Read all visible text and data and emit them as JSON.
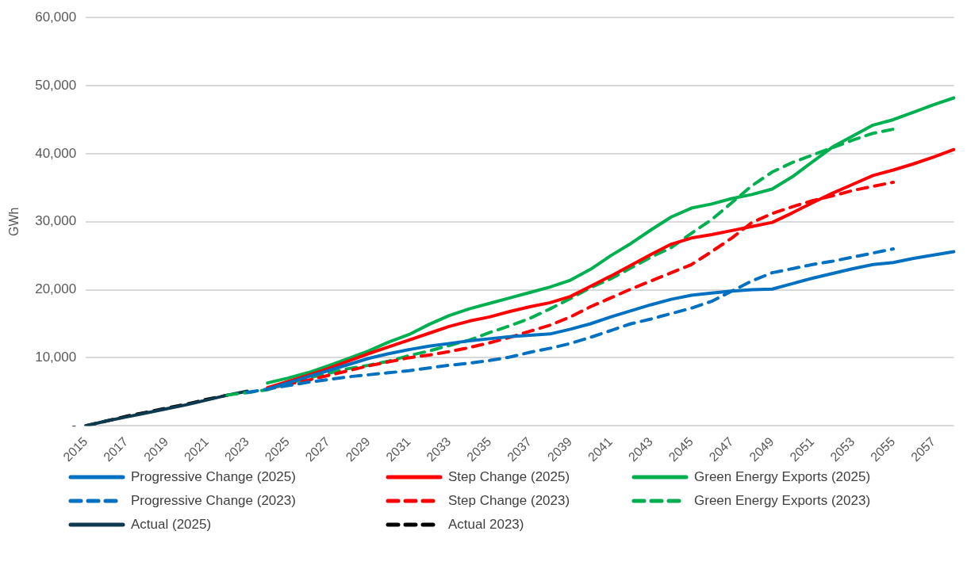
{
  "chart_data": {
    "type": "line",
    "ylabel": "GWh",
    "categories": [
      "2015",
      null,
      "2017",
      null,
      "2019",
      null,
      "2021",
      null,
      "2023",
      null,
      "2025",
      null,
      "2027",
      null,
      "2029",
      null,
      "2031",
      null,
      "2033",
      null,
      "2035",
      null,
      "2037",
      null,
      "2039",
      null,
      "2041",
      null,
      "2043",
      null,
      "2045",
      null,
      "2047",
      null,
      "2049",
      null,
      "2051",
      null,
      "2053",
      null,
      "2055",
      null,
      "2057",
      null
    ],
    "ylim": [
      0,
      60000
    ],
    "yticks": [
      {
        "value": 0,
        "label": "-"
      },
      {
        "value": 10000,
        "label": "10,000"
      },
      {
        "value": 20000,
        "label": "20,000"
      },
      {
        "value": 30000,
        "label": "30,000"
      },
      {
        "value": 40000,
        "label": "40,000"
      },
      {
        "value": 50000,
        "label": "50,000"
      },
      {
        "value": 60000,
        "label": "60,000"
      }
    ],
    "grid": "y",
    "legend": "bottom",
    "marker": "none",
    "series": [
      {
        "name": "Progressive Change (2025)",
        "color": "#0070c0",
        "line_style": "solid",
        "values": [
          null,
          null,
          null,
          null,
          null,
          null,
          null,
          null,
          null,
          5400,
          6300,
          7200,
          8100,
          9000,
          9900,
          10600,
          11200,
          11700,
          12100,
          12500,
          12800,
          13100,
          13300,
          13500,
          14200,
          15000,
          16000,
          16900,
          17800,
          18600,
          19200,
          19500,
          19800,
          20000,
          20100,
          20900,
          21700,
          22400,
          23100,
          23700,
          24000,
          24600,
          25100,
          25600
        ]
      },
      {
        "name": "Step Change (2025)",
        "color": "#ff0000",
        "line_style": "solid",
        "values": [
          null,
          null,
          null,
          null,
          null,
          null,
          null,
          null,
          null,
          5600,
          6500,
          7400,
          8400,
          9500,
          10600,
          11600,
          12600,
          13600,
          14600,
          15400,
          16000,
          16800,
          17500,
          18100,
          19000,
          20500,
          22000,
          23600,
          25200,
          26700,
          27600,
          28100,
          28700,
          29300,
          29900,
          31300,
          32800,
          34200,
          35500,
          36800,
          37600,
          38500,
          39500,
          40600
        ]
      },
      {
        "name": "Green Energy Exports (2025)",
        "color": "#00b050",
        "line_style": "solid",
        "values": [
          null,
          null,
          null,
          null,
          null,
          null,
          null,
          null,
          null,
          6300,
          7000,
          7800,
          8800,
          9900,
          11000,
          12300,
          13400,
          14900,
          16200,
          17200,
          18000,
          18800,
          19600,
          20400,
          21400,
          23000,
          25000,
          26800,
          28800,
          30700,
          32000,
          32600,
          33400,
          34000,
          34800,
          36600,
          38800,
          41000,
          42600,
          44200,
          45000,
          46100,
          47200,
          48200
        ]
      },
      {
        "name": "Progressive Change (2023)",
        "color": "#0070c0",
        "line_style": "dashed",
        "values": [
          null,
          null,
          null,
          null,
          null,
          null,
          null,
          null,
          4900,
          5400,
          5900,
          6400,
          6800,
          7200,
          7500,
          7800,
          8100,
          8500,
          8900,
          9200,
          9600,
          10100,
          10800,
          11400,
          12100,
          13000,
          14000,
          15000,
          15700,
          16500,
          17300,
          18300,
          19800,
          21300,
          22500,
          23100,
          23700,
          24200,
          24800,
          25400,
          26000,
          null,
          null,
          null
        ]
      },
      {
        "name": "Step Change (2023)",
        "color": "#ff0000",
        "line_style": "dashed",
        "values": [
          null,
          null,
          null,
          null,
          null,
          null,
          null,
          null,
          null,
          5500,
          6100,
          6700,
          7400,
          8100,
          8800,
          9400,
          10000,
          10400,
          10900,
          11500,
          12200,
          13000,
          13900,
          14800,
          16000,
          17500,
          18800,
          20100,
          21300,
          22500,
          23700,
          25600,
          27600,
          29900,
          31200,
          32200,
          33100,
          33800,
          34600,
          35200,
          35800,
          null,
          null,
          null
        ]
      },
      {
        "name": "Green Energy Exports (2023)",
        "color": "#00b050",
        "line_style": "dashed",
        "values": [
          null,
          null,
          null,
          null,
          null,
          null,
          null,
          4500,
          4900,
          5300,
          6200,
          7000,
          7700,
          8400,
          8900,
          9500,
          10300,
          11000,
          11800,
          12600,
          13700,
          14700,
          15800,
          17200,
          18700,
          20300,
          21600,
          23200,
          24800,
          26200,
          28300,
          30300,
          32800,
          35300,
          37300,
          38700,
          39800,
          40900,
          42000,
          43000,
          43600,
          null,
          null,
          null
        ]
      },
      {
        "name": "Actual (2025)",
        "color": "#0e3a4f",
        "line_style": "solid",
        "values": [
          0,
          700,
          1300,
          1900,
          2500,
          3100,
          3800,
          4500,
          5100,
          null,
          null,
          null,
          null,
          null,
          null,
          null,
          null,
          null,
          null,
          null,
          null,
          null,
          null,
          null,
          null,
          null,
          null,
          null,
          null,
          null,
          null,
          null,
          null,
          null,
          null,
          null,
          null,
          null,
          null,
          null,
          null,
          null,
          null,
          null
        ]
      },
      {
        "name": "Actual 2023)",
        "color": "#000000",
        "line_style": "dashed",
        "values": [
          0,
          700,
          1400,
          2000,
          2600,
          3200,
          3900,
          4500,
          null,
          null,
          null,
          null,
          null,
          null,
          null,
          null,
          null,
          null,
          null,
          null,
          null,
          null,
          null,
          null,
          null,
          null,
          null,
          null,
          null,
          null,
          null,
          null,
          null,
          null,
          null,
          null,
          null,
          null,
          null,
          null,
          null,
          null,
          null,
          null
        ]
      }
    ]
  }
}
